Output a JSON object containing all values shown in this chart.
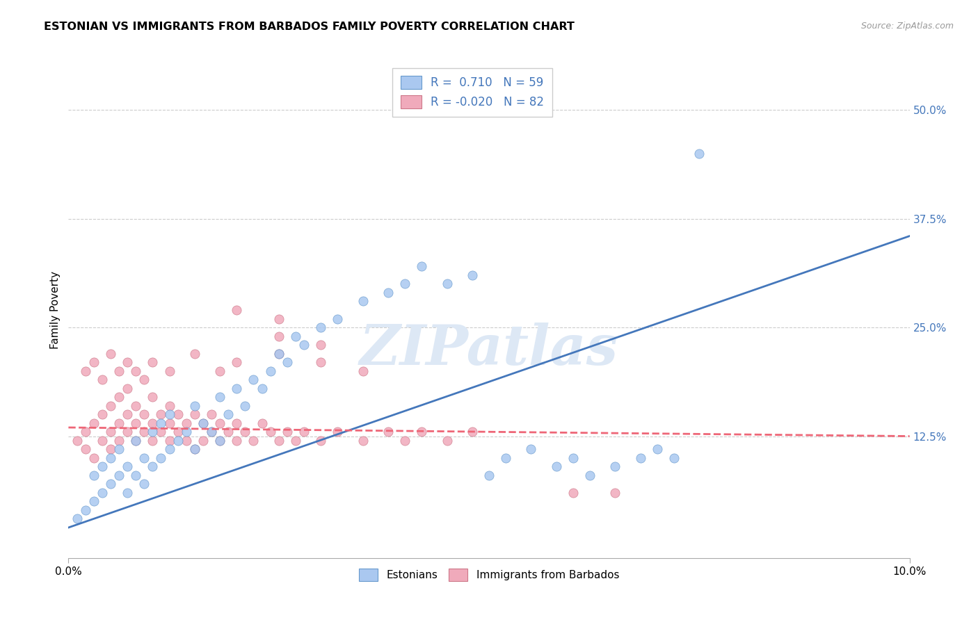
{
  "title": "ESTONIAN VS IMMIGRANTS FROM BARBADOS FAMILY POVERTY CORRELATION CHART",
  "source": "Source: ZipAtlas.com",
  "ylabel": "Family Poverty",
  "ylabel_right_ticks": [
    "50.0%",
    "37.5%",
    "25.0%",
    "12.5%"
  ],
  "ylabel_right_values": [
    0.5,
    0.375,
    0.25,
    0.125
  ],
  "xmin": 0.0,
  "xmax": 0.1,
  "ymin": -0.015,
  "ymax": 0.555,
  "r_estonian": 0.71,
  "n_estonian": 59,
  "r_barbados": -0.02,
  "n_barbados": 82,
  "color_estonian_fill": "#aac8f0",
  "color_estonian_edge": "#6699cc",
  "color_barbados_fill": "#f0aabb",
  "color_barbados_edge": "#cc7788",
  "color_line_estonian": "#4477bb",
  "color_line_barbados": "#ee6677",
  "watermark_color": "#dde8f5",
  "legend_label_estonian": "Estonians",
  "legend_label_barbados": "Immigrants from Barbados",
  "estonian_x": [
    0.001,
    0.002,
    0.003,
    0.003,
    0.004,
    0.004,
    0.005,
    0.005,
    0.006,
    0.006,
    0.007,
    0.007,
    0.008,
    0.008,
    0.009,
    0.009,
    0.01,
    0.01,
    0.011,
    0.011,
    0.012,
    0.012,
    0.013,
    0.014,
    0.015,
    0.015,
    0.016,
    0.017,
    0.018,
    0.018,
    0.019,
    0.02,
    0.021,
    0.022,
    0.023,
    0.024,
    0.025,
    0.026,
    0.027,
    0.028,
    0.03,
    0.032,
    0.035,
    0.038,
    0.04,
    0.042,
    0.045,
    0.048,
    0.05,
    0.052,
    0.055,
    0.058,
    0.06,
    0.062,
    0.065,
    0.068,
    0.07,
    0.072,
    0.075
  ],
  "estonian_y": [
    0.03,
    0.04,
    0.05,
    0.08,
    0.06,
    0.09,
    0.07,
    0.1,
    0.08,
    0.11,
    0.06,
    0.09,
    0.08,
    0.12,
    0.07,
    0.1,
    0.09,
    0.13,
    0.1,
    0.14,
    0.11,
    0.15,
    0.12,
    0.13,
    0.11,
    0.16,
    0.14,
    0.13,
    0.12,
    0.17,
    0.15,
    0.18,
    0.16,
    0.19,
    0.18,
    0.2,
    0.22,
    0.21,
    0.24,
    0.23,
    0.25,
    0.26,
    0.28,
    0.29,
    0.3,
    0.32,
    0.3,
    0.31,
    0.08,
    0.1,
    0.11,
    0.09,
    0.1,
    0.08,
    0.09,
    0.1,
    0.11,
    0.1,
    0.45
  ],
  "barbados_x": [
    0.001,
    0.002,
    0.002,
    0.003,
    0.003,
    0.004,
    0.004,
    0.005,
    0.005,
    0.005,
    0.006,
    0.006,
    0.006,
    0.007,
    0.007,
    0.007,
    0.008,
    0.008,
    0.008,
    0.009,
    0.009,
    0.01,
    0.01,
    0.01,
    0.011,
    0.011,
    0.012,
    0.012,
    0.012,
    0.013,
    0.013,
    0.014,
    0.014,
    0.015,
    0.015,
    0.016,
    0.016,
    0.017,
    0.017,
    0.018,
    0.018,
    0.019,
    0.02,
    0.02,
    0.021,
    0.022,
    0.023,
    0.024,
    0.025,
    0.026,
    0.027,
    0.028,
    0.03,
    0.032,
    0.035,
    0.038,
    0.04,
    0.042,
    0.045,
    0.048,
    0.002,
    0.003,
    0.004,
    0.005,
    0.006,
    0.007,
    0.008,
    0.009,
    0.01,
    0.012,
    0.015,
    0.018,
    0.02,
    0.025,
    0.03,
    0.035,
    0.025,
    0.03,
    0.02,
    0.025,
    0.06,
    0.065
  ],
  "barbados_y": [
    0.12,
    0.11,
    0.13,
    0.1,
    0.14,
    0.12,
    0.15,
    0.11,
    0.13,
    0.16,
    0.12,
    0.14,
    0.17,
    0.13,
    0.15,
    0.18,
    0.12,
    0.14,
    0.16,
    0.13,
    0.15,
    0.12,
    0.14,
    0.17,
    0.13,
    0.15,
    0.12,
    0.14,
    0.16,
    0.13,
    0.15,
    0.12,
    0.14,
    0.11,
    0.15,
    0.12,
    0.14,
    0.13,
    0.15,
    0.12,
    0.14,
    0.13,
    0.12,
    0.14,
    0.13,
    0.12,
    0.14,
    0.13,
    0.12,
    0.13,
    0.12,
    0.13,
    0.12,
    0.13,
    0.12,
    0.13,
    0.12,
    0.13,
    0.12,
    0.13,
    0.2,
    0.21,
    0.19,
    0.22,
    0.2,
    0.21,
    0.2,
    0.19,
    0.21,
    0.2,
    0.22,
    0.2,
    0.21,
    0.22,
    0.21,
    0.2,
    0.24,
    0.23,
    0.27,
    0.26,
    0.06,
    0.06
  ]
}
